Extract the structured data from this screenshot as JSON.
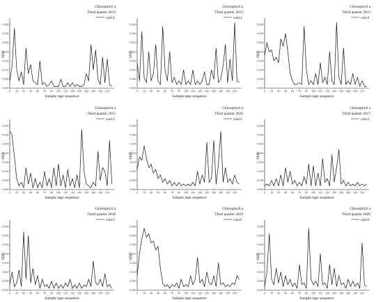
{
  "chart_data": [
    {
      "type": "line",
      "title": "Chlorophyll a",
      "subtitle": "Third quarter 2012",
      "xlabel": "Sample tape sequence",
      "ylabel": "SED",
      "legend": "win14",
      "xticks": [
        "0",
        "15",
        "30",
        "45",
        "60",
        "75",
        "90",
        "105",
        "120",
        "135",
        "150",
        "165",
        "180",
        "195",
        "210"
      ],
      "yticks": [
        "0.000",
        "0.005",
        "0.010",
        "0.015",
        "0.020",
        "0.025",
        "0.030",
        "0.035"
      ],
      "ylim": [
        0,
        0.037
      ],
      "x": [
        0,
        5,
        10,
        15,
        20,
        25,
        30,
        35,
        40,
        45,
        50,
        55,
        60,
        65,
        70,
        75,
        80,
        85,
        90,
        95,
        100,
        105,
        110,
        115,
        120,
        125,
        130,
        135,
        140,
        145,
        150,
        155,
        160,
        165,
        170,
        175,
        180,
        185,
        190,
        195,
        200,
        205,
        210,
        215,
        220
      ],
      "values": [
        0.004,
        0.012,
        0.033,
        0.01,
        0.004,
        0.009,
        0.002,
        0.022,
        0.008,
        0.013,
        0.004,
        0.003,
        0.002,
        0.015,
        0.002,
        0.003,
        0.001,
        0.002,
        0.004,
        0.001,
        0.001,
        0.001,
        0.005,
        0.001,
        0.001,
        0.003,
        0.001,
        0.003,
        0.001,
        0.002,
        0.001,
        0.001,
        0.002,
        0.008,
        0.004,
        0.024,
        0.01,
        0.021,
        0.005,
        0.002,
        0.017,
        0.003,
        0.016,
        0.002,
        0.001
      ]
    },
    {
      "type": "line",
      "title": "Chlorophyll a",
      "subtitle": "Third quarter 2013",
      "xlabel": "Sample tape sequence",
      "ylabel": "SED",
      "legend": "win14",
      "xticks": [
        "0",
        "15",
        "30",
        "45",
        "60",
        "75",
        "90",
        "105",
        "120",
        "135",
        "150",
        "165",
        "180",
        "195",
        "210"
      ],
      "yticks": [
        "0.000",
        "0.005",
        "0.010",
        "0.015",
        "0.020",
        "0.025",
        "0.030",
        "0.035"
      ],
      "ylim": [
        0,
        0.037
      ],
      "x": [
        0,
        5,
        10,
        15,
        20,
        25,
        30,
        35,
        40,
        45,
        50,
        55,
        60,
        65,
        70,
        75,
        80,
        85,
        90,
        95,
        100,
        105,
        110,
        115,
        120,
        125,
        130,
        135,
        140,
        145,
        150,
        155,
        160,
        165,
        170,
        175,
        180,
        185,
        190,
        195,
        200,
        205,
        210,
        215,
        220
      ],
      "values": [
        0.014,
        0.004,
        0.031,
        0.006,
        0.003,
        0.02,
        0.004,
        0.008,
        0.024,
        0.004,
        0.002,
        0.034,
        0.01,
        0.004,
        0.02,
        0.003,
        0.006,
        0.002,
        0.004,
        0.002,
        0.01,
        0.002,
        0.004,
        0.002,
        0.01,
        0.002,
        0.004,
        0.002,
        0.004,
        0.009,
        0.002,
        0.002,
        0.01,
        0.005,
        0.022,
        0.003,
        0.005,
        0.012,
        0.024,
        0.003,
        0.016,
        0.004,
        0.036,
        0.004,
        0.003
      ]
    },
    {
      "type": "line",
      "title": "Chlorophyll a",
      "subtitle": "Third quarter 2014",
      "xlabel": "Sample tape sequence",
      "ylabel": "SED",
      "legend": "win14",
      "xticks": [
        "0",
        "15",
        "30",
        "45",
        "60",
        "75",
        "90",
        "105",
        "120",
        "135",
        "150",
        "165",
        "180",
        "195",
        "210"
      ],
      "yticks": [
        "0.000",
        "0.005",
        "0.010",
        "0.015",
        "0.020",
        "0.025",
        "0.030",
        "0.035"
      ],
      "ylim": [
        0,
        0.037
      ],
      "x": [
        0,
        5,
        10,
        15,
        20,
        25,
        30,
        35,
        40,
        45,
        50,
        55,
        60,
        65,
        70,
        75,
        80,
        85,
        90,
        95,
        100,
        105,
        110,
        115,
        120,
        125,
        130,
        135,
        140,
        145,
        150,
        155,
        160,
        165,
        170,
        175,
        180,
        185,
        190,
        195,
        200,
        205,
        210,
        215,
        220
      ],
      "values": [
        0.018,
        0.025,
        0.02,
        0.021,
        0.015,
        0.017,
        0.014,
        0.027,
        0.023,
        0.03,
        0.02,
        0.008,
        0.004,
        0.002,
        0.002,
        0.003,
        0.002,
        0.034,
        0.01,
        0.002,
        0.004,
        0.002,
        0.008,
        0.002,
        0.014,
        0.003,
        0.006,
        0.002,
        0.02,
        0.004,
        0.002,
        0.036,
        0.006,
        0.002,
        0.022,
        0.002,
        0.004,
        0.002,
        0.008,
        0.002,
        0.006,
        0.001,
        0.004,
        0.001,
        0.001
      ]
    },
    {
      "type": "line",
      "title": "Chlorophyll a",
      "subtitle": "Third quarter 2015",
      "xlabel": "Sample tape sequence",
      "ylabel": "SED",
      "legend": "win12",
      "xticks": [
        "0",
        "15",
        "30",
        "45",
        "60",
        "75",
        "90",
        "105",
        "120",
        "135",
        "150",
        "165",
        "180",
        "195",
        "210"
      ],
      "yticks": [
        "0.000",
        "0.005",
        "0.010",
        "0.015",
        "0.020",
        "0.025",
        "0.030",
        "0.035"
      ],
      "ylim": [
        0,
        0.037
      ],
      "x": [
        0,
        5,
        10,
        15,
        20,
        25,
        30,
        35,
        40,
        45,
        50,
        55,
        60,
        65,
        70,
        75,
        80,
        85,
        90,
        95,
        100,
        105,
        110,
        115,
        120,
        125,
        130,
        135,
        140,
        145,
        150,
        155,
        160,
        165,
        170,
        175,
        180,
        185,
        190,
        195,
        200,
        205,
        210,
        215,
        220
      ],
      "values": [
        0.032,
        0.03,
        0.018,
        0.006,
        0.002,
        0.004,
        0.001,
        0.012,
        0.003,
        0.009,
        0.001,
        0.006,
        0.001,
        0.004,
        0.001,
        0.01,
        0.002,
        0.006,
        0.001,
        0.012,
        0.002,
        0.014,
        0.002,
        0.008,
        0.001,
        0.011,
        0.002,
        0.006,
        0.001,
        0.008,
        0.001,
        0.033,
        0.01,
        0.003,
        0.002,
        0.001,
        0.004,
        0.002,
        0.021,
        0.005,
        0.012,
        0.01,
        0.002,
        0.027,
        0.003
      ]
    },
    {
      "type": "line",
      "title": "Chlorophyll a",
      "subtitle": "Third quarter 2016",
      "xlabel": "Sample tape sequence",
      "ylabel": "SED",
      "legend": "win16",
      "xticks": [
        "0",
        "15",
        "30",
        "45",
        "60",
        "75",
        "90",
        "105",
        "120",
        "135",
        "150",
        "165",
        "180",
        "195",
        "210"
      ],
      "yticks": [
        "0.000",
        "0.005",
        "0.010",
        "0.015",
        "0.020",
        "0.025",
        "0.030",
        "0.035"
      ],
      "ylim": [
        0,
        0.037
      ],
      "x": [
        0,
        5,
        10,
        15,
        20,
        25,
        30,
        35,
        40,
        45,
        50,
        55,
        60,
        65,
        70,
        75,
        80,
        85,
        90,
        95,
        100,
        105,
        110,
        115,
        120,
        125,
        130,
        135,
        140,
        145,
        150,
        155,
        160,
        165,
        170,
        175,
        180,
        185,
        190,
        195,
        200,
        205,
        210,
        215,
        220
      ],
      "values": [
        0.011,
        0.018,
        0.016,
        0.024,
        0.017,
        0.012,
        0.014,
        0.009,
        0.011,
        0.006,
        0.008,
        0.004,
        0.006,
        0.003,
        0.005,
        0.002,
        0.004,
        0.002,
        0.004,
        0.002,
        0.003,
        0.002,
        0.003,
        0.002,
        0.004,
        0.002,
        0.01,
        0.003,
        0.008,
        0.004,
        0.026,
        0.004,
        0.006,
        0.027,
        0.003,
        0.014,
        0.032,
        0.004,
        0.012,
        0.004,
        0.006,
        0.003,
        0.008,
        0.004,
        0.003
      ]
    },
    {
      "type": "line",
      "title": "Chlorophyll a",
      "subtitle": "Third quarter 2017",
      "xlabel": "Sample tape sequence",
      "ylabel": "SED",
      "legend": "win12",
      "xticks": [
        "0",
        "15",
        "30",
        "45",
        "60",
        "75",
        "90",
        "105",
        "120",
        "135",
        "150",
        "165",
        "180",
        "195",
        "210"
      ],
      "yticks": [
        "0.000",
        "0.005",
        "0.010",
        "0.015",
        "0.020",
        "0.025",
        "0.030",
        "0.035"
      ],
      "ylim": [
        0,
        0.037
      ],
      "x": [
        0,
        5,
        10,
        15,
        20,
        25,
        30,
        35,
        40,
        45,
        50,
        55,
        60,
        65,
        70,
        75,
        80,
        85,
        90,
        95,
        100,
        105,
        110,
        115,
        120,
        125,
        130,
        135,
        140,
        145,
        150,
        155,
        160,
        165,
        170,
        175,
        180,
        185,
        190,
        195,
        200,
        205,
        210,
        215,
        220
      ],
      "values": [
        0.002,
        0.003,
        0.002,
        0.005,
        0.002,
        0.006,
        0.002,
        0.008,
        0.002,
        0.012,
        0.004,
        0.01,
        0.003,
        0.005,
        0.002,
        0.004,
        0.002,
        0.007,
        0.003,
        0.014,
        0.002,
        0.013,
        0.002,
        0.009,
        0.002,
        0.017,
        0.004,
        0.006,
        0.002,
        0.019,
        0.004,
        0.012,
        0.022,
        0.003,
        0.005,
        0.002,
        0.004,
        0.002,
        0.003,
        0.002,
        0.004,
        0.002,
        0.003,
        0.002,
        0.003
      ]
    },
    {
      "type": "line",
      "title": "Chlorophyll a",
      "subtitle": "Third quarter 2018",
      "xlabel": "Sample tape sequence",
      "ylabel": "SED",
      "legend": "win12",
      "xticks": [
        "0",
        "15",
        "30",
        "45",
        "60",
        "75",
        "90",
        "105",
        "120",
        "135",
        "150",
        "165",
        "180",
        "195",
        "210"
      ],
      "yticks": [
        "0.000",
        "0.005",
        "0.010",
        "0.015",
        "0.020",
        "0.025",
        "0.030",
        "0.035"
      ],
      "ylim": [
        0,
        0.037
      ],
      "x": [
        0,
        5,
        10,
        15,
        20,
        25,
        30,
        35,
        40,
        45,
        50,
        55,
        60,
        65,
        70,
        75,
        80,
        85,
        90,
        95,
        100,
        105,
        110,
        115,
        120,
        125,
        130,
        135,
        140,
        145,
        150,
        155,
        160,
        165,
        170,
        175,
        180,
        185,
        190,
        195,
        200,
        205,
        210,
        215,
        220
      ],
      "values": [
        0.003,
        0.01,
        0.002,
        0.004,
        0.011,
        0.002,
        0.032,
        0.006,
        0.03,
        0.004,
        0.012,
        0.003,
        0.008,
        0.001,
        0.006,
        0.002,
        0.003,
        0.001,
        0.005,
        0.001,
        0.004,
        0.001,
        0.003,
        0.001,
        0.004,
        0.002,
        0.006,
        0.001,
        0.003,
        0.001,
        0.004,
        0.001,
        0.003,
        0.002,
        0.006,
        0.002,
        0.016,
        0.004,
        0.003,
        0.006,
        0.002,
        0.009,
        0.002,
        0.003,
        0.001
      ]
    },
    {
      "type": "line",
      "title": "Chlorophyll a",
      "subtitle": "Third quarter 2019",
      "xlabel": "Sample tape sequence",
      "ylabel": "SED",
      "legend": "win22",
      "xticks": [
        "0",
        "15",
        "30",
        "45",
        "60",
        "75",
        "90",
        "105",
        "120",
        "135",
        "150",
        "165",
        "180",
        "195",
        "210"
      ],
      "yticks": [
        "0.000",
        "0.005",
        "0.010",
        "0.015",
        "0.020",
        "0.025",
        "0.030",
        "0.035"
      ],
      "ylim": [
        0,
        0.037
      ],
      "x": [
        0,
        5,
        10,
        15,
        20,
        25,
        30,
        35,
        40,
        45,
        50,
        55,
        60,
        65,
        70,
        75,
        80,
        85,
        90,
        95,
        100,
        105,
        110,
        115,
        120,
        125,
        130,
        135,
        140,
        145,
        150,
        155,
        160,
        165,
        170,
        175,
        180,
        185,
        190,
        195,
        200,
        205,
        210,
        215,
        220
      ],
      "values": [
        0.008,
        0.02,
        0.028,
        0.034,
        0.029,
        0.031,
        0.026,
        0.027,
        0.022,
        0.024,
        0.012,
        0.004,
        0.002,
        0.003,
        0.001,
        0.003,
        0.002,
        0.004,
        0.001,
        0.006,
        0.002,
        0.003,
        0.002,
        0.008,
        0.003,
        0.006,
        0.018,
        0.004,
        0.006,
        0.002,
        0.01,
        0.004,
        0.003,
        0.008,
        0.002,
        0.015,
        0.003,
        0.004,
        0.002,
        0.003,
        0.002,
        0.004,
        0.003,
        0.008,
        0.006
      ]
    },
    {
      "type": "line",
      "title": "Chlorophyll a",
      "subtitle": "Third quarter 2020",
      "xlabel": "Sample tape sequence",
      "ylabel": "SED",
      "legend": "win10",
      "xticks": [
        "0",
        "15",
        "30",
        "45",
        "60",
        "75",
        "90",
        "105",
        "120",
        "135",
        "150",
        "165",
        "180",
        "195",
        "210"
      ],
      "yticks": [
        "0.000",
        "0.005",
        "0.010",
        "0.015",
        "0.020",
        "0.025",
        "0.030",
        "0.035"
      ],
      "ylim": [
        0,
        0.037
      ],
      "x": [
        0,
        5,
        10,
        15,
        20,
        25,
        30,
        35,
        40,
        45,
        50,
        55,
        60,
        65,
        70,
        75,
        80,
        85,
        90,
        95,
        100,
        105,
        110,
        115,
        120,
        125,
        130,
        135,
        140,
        145,
        150,
        155,
        160,
        165,
        170,
        175,
        180,
        185,
        190,
        195,
        200,
        205,
        210,
        215,
        220
      ],
      "values": [
        0.002,
        0.01,
        0.031,
        0.006,
        0.003,
        0.012,
        0.004,
        0.01,
        0.002,
        0.008,
        0.003,
        0.006,
        0.002,
        0.004,
        0.001,
        0.014,
        0.003,
        0.004,
        0.001,
        0.034,
        0.006,
        0.003,
        0.005,
        0.002,
        0.02,
        0.003,
        0.004,
        0.001,
        0.014,
        0.003,
        0.012,
        0.002,
        0.008,
        0.003,
        0.004,
        0.001,
        0.006,
        0.002,
        0.005,
        0.002,
        0.004,
        0.001,
        0.026,
        0.003,
        0.002
      ]
    }
  ]
}
